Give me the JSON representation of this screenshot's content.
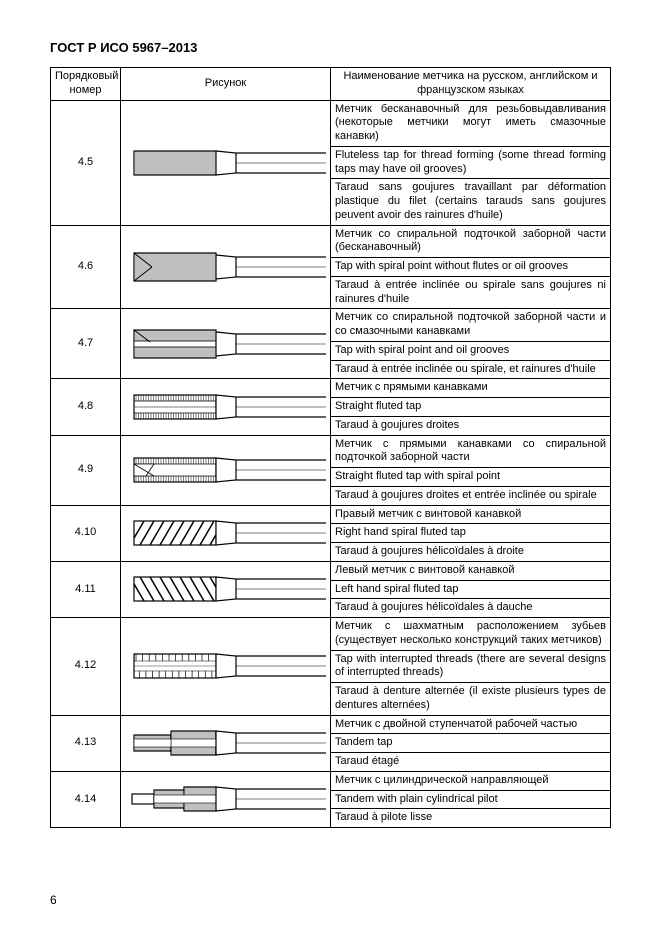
{
  "doc_title": "ГОСТ Р ИСО 5967–2013",
  "page_number": "6",
  "colors": {
    "border": "#000000",
    "text": "#000000",
    "bg": "#ffffff",
    "hatch": "#000000"
  },
  "table": {
    "headers": {
      "num": "Порядковый номер",
      "img": "Рисунок",
      "desc": "Наименование метчика на русском, английском и французском языках"
    },
    "rows": [
      {
        "num": "4.5",
        "img_type": "fluteless",
        "ru": "Метчик бесканавочный для резьбовы­давливания (некоторые метчики могут иметь смазочные канавки)",
        "en": "Fluteless tap for thread forming (some thread forming taps may have oil grooves)",
        "fr": "Taraud sans goujures travaillant par déformation plastique du filet (certains tarauds sans goujures peuvent avoir des rainures d'huile)"
      },
      {
        "num": "4.6",
        "img_type": "spiral_point_nf",
        "ru": "Метчик со спиральной подточкой за­борной части (бесканавочный)",
        "en": "Tap with spiral point without flutes or oil grooves",
        "fr": "Taraud à entrée inclinée ou spirale sans goujures ni rainures d'huile"
      },
      {
        "num": "4.7",
        "img_type": "spiral_point_oil",
        "ru": "Метчик со спиральной подточкой  за­борной части и со смазочными канав­ками",
        "en": "Tap  with  spiral  point  and  oil  grooves",
        "fr": "Taraud à entrée inclinée ou spirale, et rainures d'huile"
      },
      {
        "num": "4.8",
        "img_type": "straight_fluted",
        "ru": "Метчик с прямыми канавками",
        "en": "Straight  fluted  tap",
        "fr": "Taraud  à  goujures  droites"
      },
      {
        "num": "4.9",
        "img_type": "straight_spiral_point",
        "ru": "Метчик с прямыми канавками со спи­ральной подточкой заборной части",
        "en": "Straight  fluted  tap  with  spiral  point",
        "fr": "Taraud à goujures droites et entrée inclinée ou spirale"
      },
      {
        "num": "4.10",
        "img_type": "rh_spiral",
        "ru": "Правый метчик с винтовой канавкой",
        "en": "Right  hand  spiral fluted tap",
        "fr": "Taraud à goujures hélicoïdales à droite"
      },
      {
        "num": "4.11",
        "img_type": "lh_spiral",
        "ru": "Левый метчик с винтовой канавкой",
        "en": "Left  hand  spiral  fluted  tap",
        "fr": "Taraud à goujures hélicoïdales à dauche"
      },
      {
        "num": "4.12",
        "img_type": "interrupted",
        "ru": "Метчик с шахматным расположением зубьев (существует несколько конструк­ций таких метчиков)",
        "en": "Tap with interrupted threads (there are several designs of interrupted threads)",
        "fr": "Taraud à denture alternée (il existe plusieurs types de dentures alternées)"
      },
      {
        "num": "4.13",
        "img_type": "tandem",
        "ru": "Метчик с двойной ступенчатой рабо­чей частью",
        "en": "Tandem tap",
        "fr": "Taraud étagé"
      },
      {
        "num": "4.14",
        "img_type": "tandem_pilot",
        "ru": "Метчик с цилиндрической направля­ющей",
        "en": "Tandem with plain cylindrical pilot",
        "fr": "Taraud à pilote lisse"
      }
    ]
  }
}
